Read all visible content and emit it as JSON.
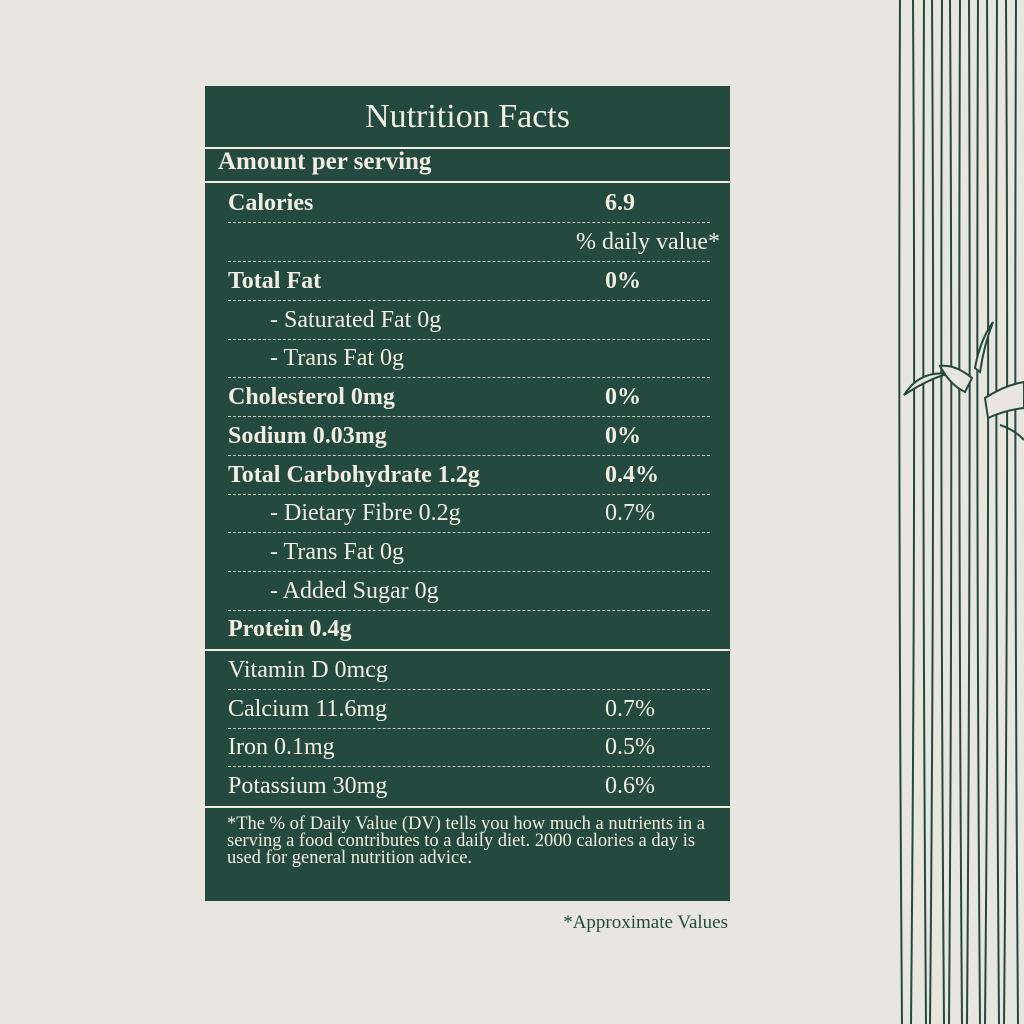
{
  "title": "Nutrition Facts",
  "amount_per_serving": "Amount per serving",
  "calories": {
    "label": "Calories",
    "value": "6.9"
  },
  "daily_value_header": "% daily value*",
  "nutrients": [
    {
      "label": "Total Fat",
      "value": "0%",
      "bold": true,
      "indent": false
    },
    {
      "label": "- Saturated Fat 0g",
      "value": "",
      "bold": false,
      "indent": true
    },
    {
      "label": "- Trans Fat 0g",
      "value": "",
      "bold": false,
      "indent": true
    },
    {
      "label": "Cholesterol 0mg",
      "value": "0%",
      "bold": true,
      "indent": false
    },
    {
      "label": "Sodium 0.03mg",
      "value": "0%",
      "bold": true,
      "indent": false
    },
    {
      "label": "Total Carbohydrate 1.2g",
      "value": "0.4%",
      "bold": true,
      "indent": false
    },
    {
      "label": "- Dietary Fibre 0.2g",
      "value": "0.7%",
      "bold": false,
      "indent": true
    },
    {
      "label": "- Trans Fat 0g",
      "value": "",
      "bold": false,
      "indent": true
    },
    {
      "label": "- Added Sugar 0g",
      "value": "",
      "bold": false,
      "indent": true
    },
    {
      "label": "Protein 0.4g",
      "value": "",
      "bold": true,
      "indent": false
    }
  ],
  "vitamins": [
    {
      "label": "Vitamin D 0mcg",
      "value": ""
    },
    {
      "label": "Calcium 11.6mg",
      "value": "0.7%"
    },
    {
      "label": "Iron 0.1mg",
      "value": "0.5%"
    },
    {
      "label": "Potassium 30mg",
      "value": "0.6%"
    }
  ],
  "footnote": "*The % of Daily Value (DV) tells you how much a nutrients in a serving a food contributes to a daily diet. 2000 calories a day is used for general nutrition advice.",
  "approximate_note": "*Approximate Values",
  "colors": {
    "panel": "#244a3f",
    "background": "#e8e6df",
    "text": "#f1ede2"
  }
}
